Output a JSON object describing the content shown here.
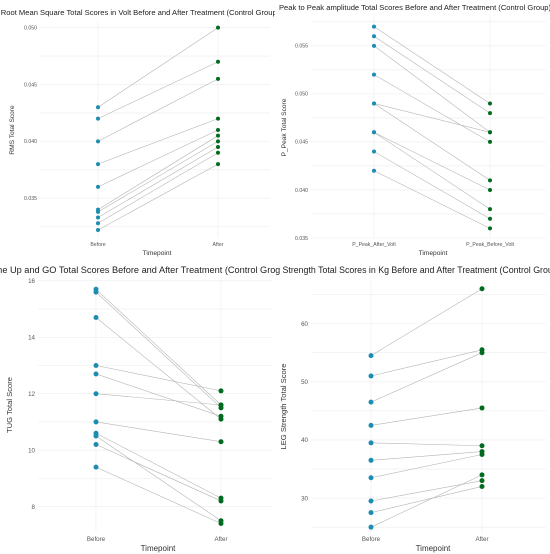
{
  "colors": {
    "before": "#1b8db1",
    "after": "#006b1e",
    "pair_line": "#b5b5b5",
    "grid": "#ececec"
  },
  "chart_data": [
    {
      "type": "scatter",
      "title": "Root Mean Square Total Scores in Volt Before and After Treatment (Control Group)",
      "xlabel": "Timepoint",
      "ylabel": "RMS Total Score",
      "categories": [
        "Before",
        "After"
      ],
      "ylim": [
        0.0315,
        0.0505
      ],
      "yticks": [
        0.035,
        0.04,
        0.045,
        0.05
      ],
      "ytick_labels": [
        "0.035",
        "0.040",
        "0.045",
        "0.050"
      ],
      "grid": true,
      "pairs": [
        [
          0.043,
          0.05
        ],
        [
          0.042,
          0.047
        ],
        [
          0.04,
          0.0455
        ],
        [
          0.038,
          0.042
        ],
        [
          0.036,
          0.041
        ],
        [
          0.034,
          0.0405
        ],
        [
          0.0338,
          0.04
        ],
        [
          0.0333,
          0.0395
        ],
        [
          0.0328,
          0.039
        ],
        [
          0.0322,
          0.038
        ]
      ]
    },
    {
      "type": "scatter",
      "title": "Peak to Peak amplitude Total Scores Before and After Treatment (Control Group)",
      "xlabel": "Timepoint",
      "ylabel": "P_Peak Total Score",
      "categories": [
        "P_Peak_After_Volt",
        "P_Peak_Before_Volt"
      ],
      "ylim": [
        0.035,
        0.058
      ],
      "yticks": [
        0.035,
        0.04,
        0.045,
        0.05,
        0.055
      ],
      "ytick_labels": [
        "0.035",
        "0.040",
        "0.045",
        "0.050",
        "0.055"
      ],
      "grid": true,
      "pairs": [
        [
          0.057,
          0.049
        ],
        [
          0.056,
          0.048
        ],
        [
          0.055,
          0.046
        ],
        [
          0.052,
          0.045
        ],
        [
          0.049,
          0.041
        ],
        [
          0.046,
          0.04
        ],
        [
          0.046,
          0.038
        ],
        [
          0.044,
          0.037
        ],
        [
          0.042,
          0.036
        ],
        [
          0.049,
          0.046
        ]
      ]
    },
    {
      "type": "scatter",
      "title": "Time Up and GO Total Scores Before and After Treatment (Control Group)",
      "xlabel": "Timepoint",
      "ylabel": "TUG Total Score",
      "categories": [
        "Before",
        "After"
      ],
      "ylim": [
        7.1,
        16.1
      ],
      "yticks": [
        8,
        10,
        12,
        14,
        16
      ],
      "ytick_labels": [
        "8",
        "10",
        "12",
        "14",
        "16"
      ],
      "grid": true,
      "pairs": [
        [
          15.7,
          11.6
        ],
        [
          15.6,
          11.5
        ],
        [
          14.7,
          11.1
        ],
        [
          13.0,
          12.1
        ],
        [
          12.7,
          11.2
        ],
        [
          12.0,
          11.6
        ],
        [
          11.0,
          10.3
        ],
        [
          10.6,
          8.3
        ],
        [
          10.2,
          8.2
        ],
        [
          9.4,
          7.4
        ],
        [
          10.5,
          7.5
        ]
      ]
    },
    {
      "type": "scatter",
      "title": "Leg Strength Total Scores in Kg Before and After Treatment (Control Group)",
      "xlabel": "Timepoint",
      "ylabel": "LEG Strength Total Score",
      "categories": [
        "Before",
        "After"
      ],
      "ylim": [
        24.0,
        67.5
      ],
      "yticks": [
        30,
        40,
        50,
        60
      ],
      "ytick_labels": [
        "30",
        "40",
        "50",
        "60"
      ],
      "grid": true,
      "pairs": [
        [
          54.5,
          66.0
        ],
        [
          51.0,
          55.5
        ],
        [
          46.5,
          55.0
        ],
        [
          42.5,
          45.5
        ],
        [
          39.5,
          39.0
        ],
        [
          36.5,
          38.0
        ],
        [
          33.5,
          37.5
        ],
        [
          29.5,
          33.0
        ],
        [
          27.5,
          32.0
        ],
        [
          25.0,
          34.0
        ]
      ]
    }
  ]
}
